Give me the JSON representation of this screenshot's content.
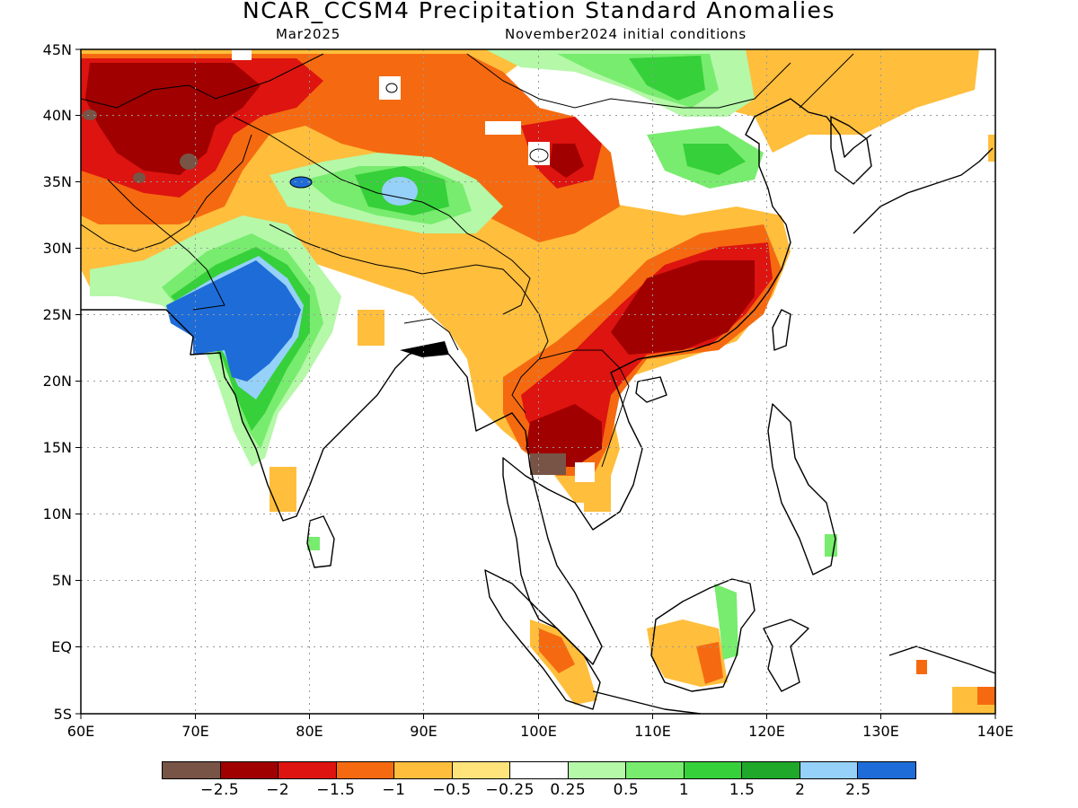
{
  "title": "NCAR_CCSM4 Precipitation Standard Anomalies",
  "subtitle_left": "Mar2025",
  "subtitle_right": "November2024 initial conditions",
  "lat_ticks": [
    "45N",
    "40N",
    "35N",
    "30N",
    "25N",
    "20N",
    "15N",
    "10N",
    "5N",
    "EQ",
    "5S"
  ],
  "lon_ticks": [
    "60E",
    "70E",
    "80E",
    "90E",
    "100E",
    "110E",
    "120E",
    "130E",
    "140E"
  ],
  "colorbar": {
    "colors": [
      "#775446",
      "#a00000",
      "#dd1410",
      "#f56a10",
      "#ffbe3c",
      "#ffe47c",
      "#ffffff",
      "#b4f8a8",
      "#78ec6e",
      "#36d03a",
      "#1fa82a",
      "#95d1f8",
      "#1e6cd8"
    ],
    "labels": [
      "-2.5",
      "-2",
      "-1.5",
      "-1",
      "-0.5",
      "-0.25",
      "0.25",
      "0.5",
      "1",
      "1.5",
      "2",
      "2.5"
    ]
  }
}
